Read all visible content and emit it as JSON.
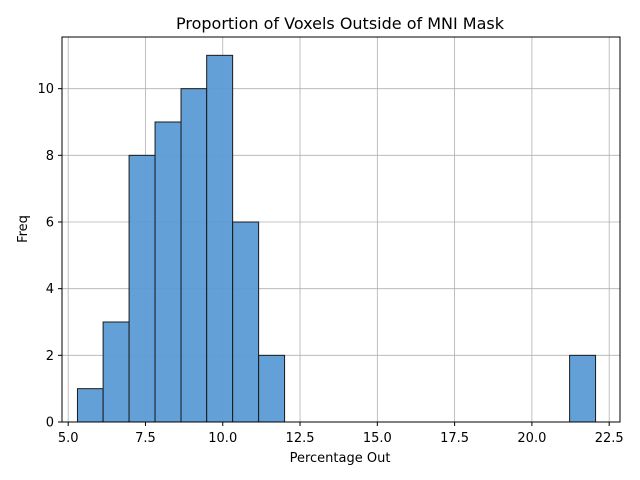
{
  "chart_data": {
    "type": "bar",
    "title": "Proportion of Voxels Outside of MNI Mask",
    "xlabel": "Percentage Out",
    "ylabel": "Freq",
    "xlim": [
      4.8,
      22.85
    ],
    "ylim": [
      0,
      11.55
    ],
    "xticks": [
      5.0,
      7.5,
      10.0,
      12.5,
      15.0,
      17.5,
      20.0,
      22.5
    ],
    "xtick_labels": [
      "5.0",
      "7.5",
      "10.0",
      "12.5",
      "15.0",
      "17.5",
      "20.0",
      "22.5"
    ],
    "yticks": [
      0,
      2,
      4,
      6,
      8,
      10
    ],
    "ytick_labels": [
      "0",
      "2",
      "4",
      "6",
      "8",
      "10"
    ],
    "grid": true,
    "bar_color": "#5b9bd5",
    "bar_edge_color": "#1a1a1a",
    "bins": [
      {
        "x0": 5.3,
        "x1": 6.13,
        "count": 1
      },
      {
        "x0": 6.13,
        "x1": 6.97,
        "count": 3
      },
      {
        "x0": 6.97,
        "x1": 7.81,
        "count": 8
      },
      {
        "x0": 7.81,
        "x1": 8.65,
        "count": 9
      },
      {
        "x0": 8.65,
        "x1": 9.48,
        "count": 10
      },
      {
        "x0": 9.48,
        "x1": 10.32,
        "count": 11
      },
      {
        "x0": 10.32,
        "x1": 11.16,
        "count": 6
      },
      {
        "x0": 11.16,
        "x1": 12.0,
        "count": 2
      },
      {
        "x0": 12.0,
        "x1": 12.84,
        "count": 0
      },
      {
        "x0": 12.84,
        "x1": 13.68,
        "count": 0
      },
      {
        "x0": 13.68,
        "x1": 14.51,
        "count": 0
      },
      {
        "x0": 14.51,
        "x1": 15.35,
        "count": 0
      },
      {
        "x0": 15.35,
        "x1": 16.19,
        "count": 0
      },
      {
        "x0": 16.19,
        "x1": 17.03,
        "count": 0
      },
      {
        "x0": 17.03,
        "x1": 17.87,
        "count": 0
      },
      {
        "x0": 17.87,
        "x1": 18.71,
        "count": 0
      },
      {
        "x0": 18.71,
        "x1": 19.54,
        "count": 0
      },
      {
        "x0": 19.54,
        "x1": 20.38,
        "count": 0
      },
      {
        "x0": 20.38,
        "x1": 21.22,
        "count": 0
      },
      {
        "x0": 21.22,
        "x1": 22.06,
        "count": 2
      }
    ]
  }
}
